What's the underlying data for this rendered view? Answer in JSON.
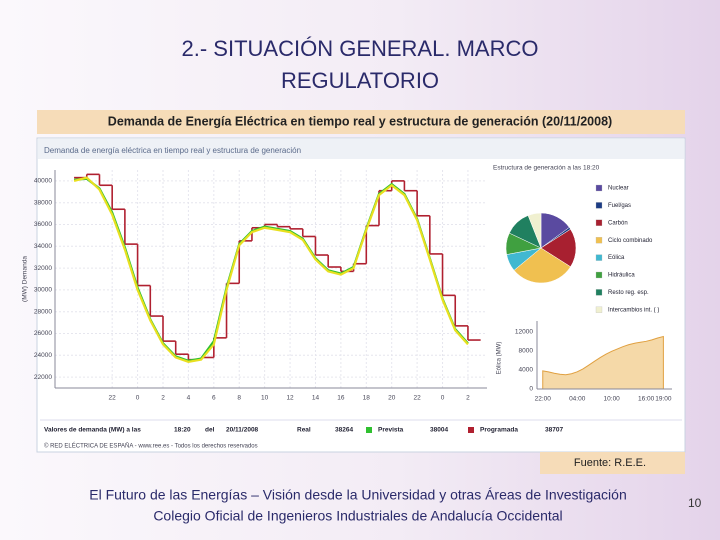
{
  "slide": {
    "title": [
      "2.- SITUACIÓN GENERAL. MARCO",
      "REGULATORIO"
    ],
    "subtitle": "Demanda de Energía Eléctrica en tiempo real y estructura de generación (20/11/2008)",
    "source": "Fuente: R.E.E.",
    "footer": [
      "El Futuro de las Energías – Visión desde la Universidad y otras Áreas de Investigación",
      "Colegio Oficial de Ingenieros Industriales de Andalucía Occidental"
    ],
    "page": 10
  },
  "panel": {
    "title": "Demanda de energía eléctrica en tiempo real y estructura de generación",
    "summary": {
      "label": "Valores de demanda (MW) a las",
      "time": "18:20",
      "del": "del",
      "date": "20/11/2008",
      "items": [
        {
          "name": "Real",
          "value": 38264
        },
        {
          "name": "Prevista",
          "value": 38004,
          "color": "#30c030"
        },
        {
          "name": "Programada",
          "value": 38707,
          "color": "#b02030"
        }
      ]
    },
    "copyright": "© RED ELÉCTRICA DE ESPAÑA - www.ree.es - Todos los derechos reservados"
  },
  "chart_data": [
    {
      "type": "line",
      "y_label": "(MW) Demanda",
      "grid": true,
      "x": [
        19,
        20,
        21,
        22,
        23,
        24,
        25,
        26,
        27,
        28,
        29,
        30,
        31,
        32,
        33,
        34,
        35,
        36,
        37,
        38,
        39,
        40,
        41,
        42,
        43,
        44,
        45,
        46,
        47,
        48,
        49,
        50
      ],
      "xlim": [
        17.5,
        51.5
      ],
      "xticks": [
        {
          "value": 22,
          "label": "22"
        },
        {
          "value": 24,
          "label": "0"
        },
        {
          "value": 26,
          "label": "2"
        },
        {
          "value": 28,
          "label": "4"
        },
        {
          "value": 30,
          "label": "6"
        },
        {
          "value": 32,
          "label": "8"
        },
        {
          "value": 34,
          "label": "10"
        },
        {
          "value": 36,
          "label": "12"
        },
        {
          "value": 38,
          "label": "14"
        },
        {
          "value": 40,
          "label": "16"
        },
        {
          "value": 42,
          "label": "18"
        },
        {
          "value": 44,
          "label": "20"
        },
        {
          "value": 46,
          "label": "22"
        },
        {
          "value": 48,
          "label": "0"
        },
        {
          "value": 50,
          "label": "2"
        }
      ],
      "ylim": [
        21000,
        41000
      ],
      "yticks": [
        22000,
        24000,
        26000,
        28000,
        30000,
        32000,
        34000,
        36000,
        38000,
        40000
      ],
      "series": [
        {
          "name": "Programada",
          "color": "#b02030",
          "step": true,
          "values": [
            40300,
            40600,
            39600,
            37400,
            34200,
            30400,
            27600,
            25300,
            24100,
            23600,
            23800,
            25600,
            30600,
            34500,
            35700,
            36000,
            35800,
            35600,
            34900,
            33200,
            32100,
            31700,
            32400,
            35900,
            39100,
            40000,
            39100,
            36800,
            33300,
            29500,
            26700,
            25400
          ]
        },
        {
          "name": "Prevista",
          "color": "#30c030",
          "values": [
            40100,
            40200,
            39300,
            37100,
            33900,
            30200,
            27300,
            25100,
            23900,
            23500,
            23700,
            25300,
            30200,
            34200,
            35400,
            35800,
            35600,
            35400,
            34700,
            32900,
            31800,
            31500,
            32100,
            35600,
            38800,
            39700,
            38800,
            36500,
            32900,
            29200,
            26400,
            25100
          ]
        },
        {
          "name": "Real",
          "color": "#e8e020",
          "values": [
            40000,
            40300,
            39200,
            36900,
            33700,
            30000,
            27200,
            25000,
            23800,
            23400,
            23600,
            25000,
            30000,
            34100,
            35300,
            35700,
            35500,
            35300,
            34600,
            32800,
            31700,
            31400,
            32000,
            35500,
            38700,
            39600,
            38700,
            36400,
            32800,
            29100,
            26300,
            25000
          ]
        }
      ]
    },
    {
      "type": "pie",
      "title": "Estructura de generación a las 18:20",
      "categories": [
        "Nuclear",
        "Fuel/gas",
        "Carbón",
        "Ciclo combinado",
        "Eólica",
        "Hidráulica",
        "Resto reg. esp.",
        "Intercambios int. ( )"
      ],
      "values": [
        15,
        1,
        18,
        30,
        8,
        10,
        12,
        6
      ],
      "colors": [
        "#5a4aa0",
        "#1c3c84",
        "#a82030",
        "#f0c050",
        "#40b8d0",
        "#40a040",
        "#208060",
        "#f0f0d0"
      ]
    },
    {
      "type": "area",
      "y_label": "Eólica (MW)",
      "color": "#f5d9a8",
      "line": "#e0a040",
      "x": [
        22,
        23,
        24,
        25,
        26,
        27,
        28,
        29,
        30,
        31,
        32,
        33,
        34,
        35,
        36,
        37,
        38,
        39,
        40,
        41,
        42,
        43
      ],
      "values": [
        3800,
        3600,
        3300,
        3100,
        3000,
        3200,
        3600,
        4200,
        5000,
        5800,
        6600,
        7300,
        7900,
        8400,
        8900,
        9300,
        9600,
        9800,
        10000,
        10300,
        10700,
        11000
      ],
      "xlim": [
        21,
        44.5
      ],
      "xticks": [
        {
          "value": 22,
          "label": "22:00"
        },
        {
          "value": 28,
          "label": "04:00"
        },
        {
          "value": 34,
          "label": "10:00"
        },
        {
          "value": 40,
          "label": "16:00"
        },
        {
          "value": 43,
          "label": "19:00"
        }
      ],
      "ylim": [
        0,
        13000
      ],
      "yticks": [
        0,
        4000,
        8000,
        12000
      ]
    }
  ]
}
